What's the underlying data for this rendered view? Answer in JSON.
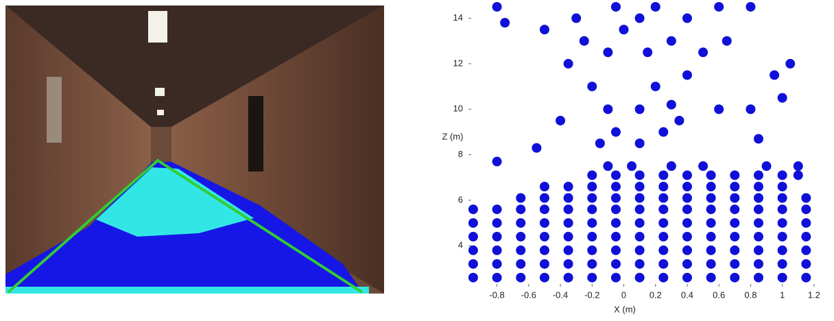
{
  "chart_data": {
    "type": "scatter",
    "x_label": "X (m)",
    "y_label": "Z (m)",
    "xlim": [
      -0.98,
      1.3
    ],
    "ylim": [
      2.2,
      14.8
    ],
    "xticks": [
      -0.8,
      -0.6,
      -0.4,
      -0.2,
      0,
      0.2,
      0.4,
      0.6,
      0.8,
      1,
      1.2
    ],
    "yticks": [
      4,
      6,
      8,
      10,
      12,
      14
    ],
    "series": [
      {
        "color": "#1010d8",
        "x": [
          -0.95,
          -0.8,
          -0.65,
          -0.5,
          -0.35,
          -0.2,
          -0.05,
          0.1,
          0.25,
          0.4,
          0.55,
          0.7,
          0.85,
          1.0,
          1.15,
          -0.95,
          -0.8,
          -0.65,
          -0.5,
          -0.35,
          -0.2,
          -0.05,
          0.1,
          0.25,
          0.4,
          0.55,
          0.7,
          0.85,
          1.0,
          1.15,
          -0.95,
          -0.8,
          -0.65,
          -0.5,
          -0.35,
          -0.2,
          -0.05,
          0.1,
          0.25,
          0.4,
          0.55,
          0.7,
          0.85,
          1.0,
          1.15,
          -0.95,
          -0.8,
          -0.65,
          -0.5,
          -0.35,
          -0.2,
          -0.05,
          0.1,
          0.25,
          0.4,
          0.55,
          0.7,
          0.85,
          1.0,
          1.15,
          -0.95,
          -0.8,
          -0.65,
          -0.5,
          -0.35,
          -0.2,
          -0.05,
          0.1,
          0.25,
          0.4,
          0.55,
          0.7,
          0.85,
          1.0,
          1.15,
          -0.95,
          -0.8,
          -0.65,
          -0.5,
          -0.35,
          -0.2,
          -0.05,
          0.1,
          0.25,
          0.4,
          0.55,
          0.7,
          0.85,
          1.0,
          1.15,
          -0.65,
          -0.5,
          -0.35,
          -0.2,
          -0.05,
          0.1,
          0.25,
          0.4,
          0.55,
          0.7,
          0.85,
          1.0,
          1.15,
          -0.5,
          -0.35,
          -0.2,
          -0.05,
          0.1,
          0.25,
          0.4,
          0.55,
          0.7,
          0.85,
          1.0,
          -0.2,
          -0.05,
          0.1,
          0.25,
          0.4,
          0.55,
          0.7,
          0.85,
          1.0,
          1.1,
          -0.1,
          0.05,
          0.3,
          0.5,
          0.9,
          1.1,
          -0.15,
          -0.05,
          0.1,
          0.25,
          0.35,
          -0.1,
          0.1,
          0.3,
          0.6,
          0.8,
          -0.55,
          -0.4,
          -0.8,
          0.85,
          -0.2,
          0.2,
          0.4,
          -0.35,
          -0.1,
          0.15,
          0.3,
          -0.5,
          -0.3,
          -0.05,
          0.2,
          0.4,
          0.6,
          0.8,
          -0.8,
          -0.75,
          0.65,
          0.95,
          1.05,
          1.0,
          -0.25,
          0,
          0.1,
          0.5
        ],
        "y": [
          2.6,
          2.6,
          2.6,
          2.6,
          2.6,
          2.6,
          2.6,
          2.6,
          2.6,
          2.6,
          2.6,
          2.6,
          2.6,
          2.6,
          2.6,
          3.2,
          3.2,
          3.2,
          3.2,
          3.2,
          3.2,
          3.2,
          3.2,
          3.2,
          3.2,
          3.2,
          3.2,
          3.2,
          3.2,
          3.2,
          3.8,
          3.8,
          3.8,
          3.8,
          3.8,
          3.8,
          3.8,
          3.8,
          3.8,
          3.8,
          3.8,
          3.8,
          3.8,
          3.8,
          3.8,
          4.4,
          4.4,
          4.4,
          4.4,
          4.4,
          4.4,
          4.4,
          4.4,
          4.4,
          4.4,
          4.4,
          4.4,
          4.4,
          4.4,
          4.4,
          5.0,
          5.0,
          5.0,
          5.0,
          5.0,
          5.0,
          5.0,
          5.0,
          5.0,
          5.0,
          5.0,
          5.0,
          5.0,
          5.0,
          5.0,
          5.6,
          5.6,
          5.6,
          5.6,
          5.6,
          5.6,
          5.6,
          5.6,
          5.6,
          5.6,
          5.6,
          5.6,
          5.6,
          5.6,
          5.6,
          6.1,
          6.1,
          6.1,
          6.1,
          6.1,
          6.1,
          6.1,
          6.1,
          6.1,
          6.1,
          6.1,
          6.1,
          6.1,
          6.6,
          6.6,
          6.6,
          6.6,
          6.6,
          6.6,
          6.6,
          6.6,
          6.6,
          6.6,
          6.6,
          7.1,
          7.1,
          7.1,
          7.1,
          7.1,
          7.1,
          7.1,
          7.1,
          7.1,
          7.1,
          7.5,
          7.5,
          7.5,
          7.5,
          7.5,
          7.5,
          8.5,
          9,
          8.5,
          9,
          9.5,
          10,
          10,
          10.2,
          10,
          10,
          8.3,
          9.5,
          7.7,
          8.7,
          11,
          11,
          11.5,
          12,
          12.5,
          12.5,
          13,
          13.5,
          14,
          14.5,
          14.5,
          14,
          14.5,
          14.5,
          14.5,
          13.8,
          13,
          11.5,
          12,
          10.5,
          13,
          13.5,
          14,
          12.5
        ]
      }
    ]
  }
}
